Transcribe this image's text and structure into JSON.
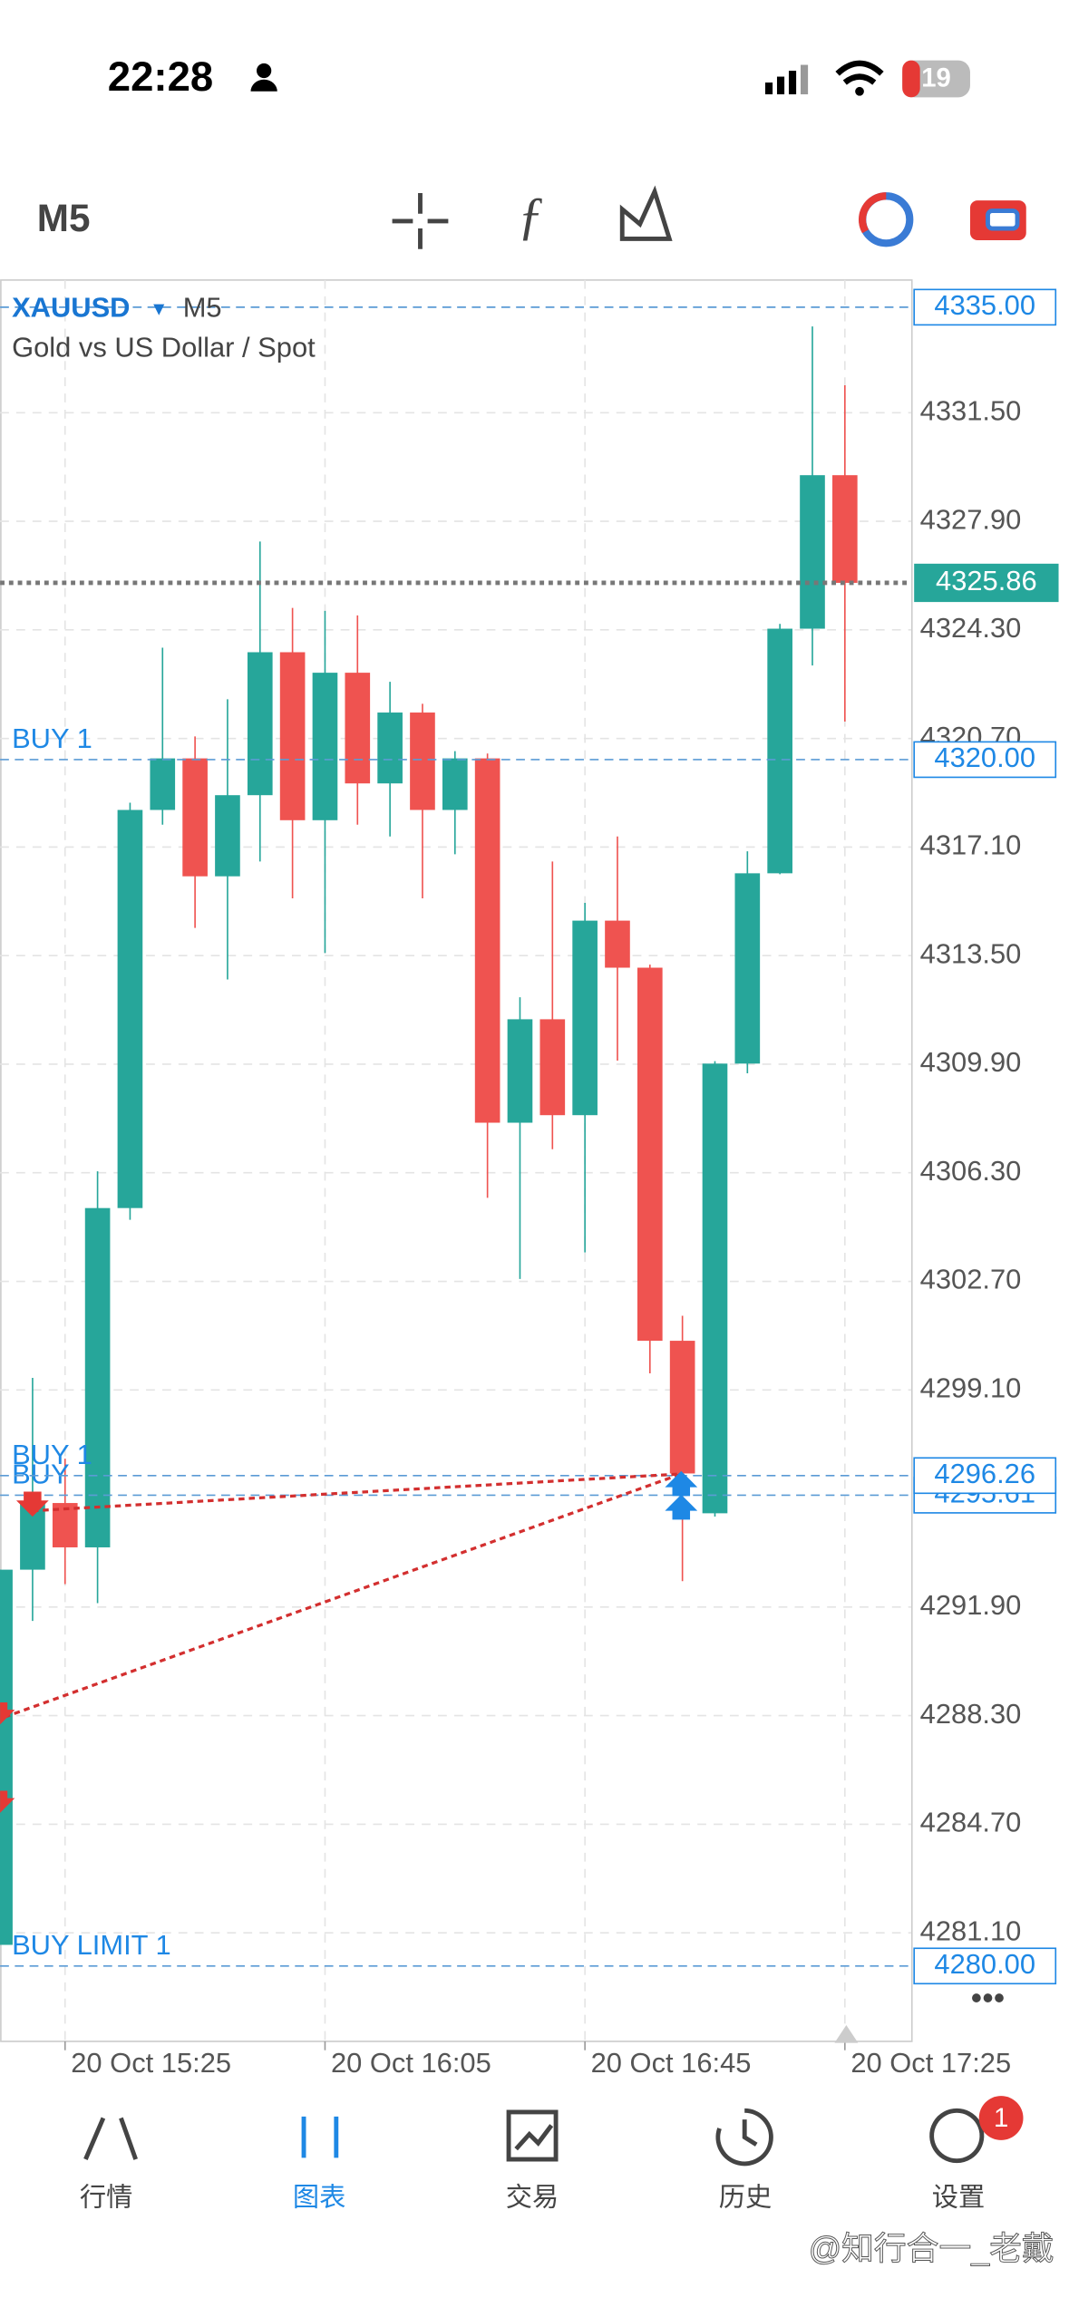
{
  "status_bar": {
    "time": "22:28",
    "battery": "19"
  },
  "toolbar": {
    "timeframe": "M5"
  },
  "chart_header": {
    "symbol": "XAUUSD",
    "timeframe": "M5",
    "description": "Gold vs US Dollar / Spot"
  },
  "chart_data": {
    "type": "candlestick",
    "categories": [
      null,
      null,
      "20 Oct 15:25",
      null,
      null,
      null,
      null,
      null,
      null,
      null,
      "20 Oct 16:05",
      null,
      null,
      null,
      null,
      null,
      null,
      null,
      "20 Oct 16:45",
      null,
      null,
      null,
      null,
      null,
      null,
      null,
      "20 Oct 17:25"
    ],
    "open": [
      4280.7,
      4293.14,
      4295.35,
      4293.88,
      4305.13,
      4318.33,
      4320.04,
      4316.13,
      4318.82,
      4323.56,
      4317.99,
      4322.88,
      4319.21,
      4321.56,
      4318.33,
      4320.04,
      4307.96,
      4311.39,
      4308.21,
      4314.66,
      4313.1,
      4300.73,
      4295.01,
      4309.92,
      4316.23,
      4324.34,
      4329.43
    ],
    "high": [
      4293.14,
      4299.5,
      4296.82,
      4306.35,
      4318.57,
      4323.71,
      4320.77,
      4322.0,
      4327.23,
      4325.03,
      4324.93,
      4324.78,
      4322.58,
      4321.85,
      4320.28,
      4320.2,
      4312.12,
      4316.62,
      4315.25,
      4317.45,
      4313.2,
      4301.56,
      4310.0,
      4316.96,
      4324.5,
      4334.36,
      4332.41
    ],
    "low": [
      4280.7,
      4291.44,
      4292.66,
      4292.03,
      4304.74,
      4317.84,
      4314.42,
      4312.71,
      4316.62,
      4315.4,
      4313.59,
      4317.84,
      4317.45,
      4315.4,
      4316.86,
      4305.47,
      4302.78,
      4307.08,
      4303.66,
      4310.02,
      4299.65,
      4292.76,
      4294.9,
      4309.6,
      4316.2,
      4323.12,
      4321.26
    ],
    "close": [
      4293.14,
      4295.35,
      4293.88,
      4305.13,
      4318.33,
      4320.04,
      4316.13,
      4318.82,
      4323.56,
      4317.99,
      4322.88,
      4319.21,
      4321.56,
      4318.33,
      4320.04,
      4307.96,
      4311.39,
      4308.21,
      4314.66,
      4313.1,
      4300.73,
      4296.33,
      4309.92,
      4316.23,
      4324.34,
      4329.43,
      4325.86
    ],
    "up_color": "#26a69a",
    "down_color": "#ef5350",
    "ylim": [
      4277.5,
      4335.9
    ],
    "yticks": [
      {
        "value": 4331.5,
        "label": "4331.50"
      },
      {
        "value": 4327.9,
        "label": "4327.90"
      },
      {
        "value": 4324.3,
        "label": "4324.30"
      },
      {
        "value": 4320.7,
        "label": "4320.70"
      },
      {
        "value": 4317.1,
        "label": "4317.10"
      },
      {
        "value": 4313.5,
        "label": "4313.50"
      },
      {
        "value": 4309.9,
        "label": "4309.90"
      },
      {
        "value": 4306.3,
        "label": "4306.30"
      },
      {
        "value": 4302.7,
        "label": "4302.70"
      },
      {
        "value": 4299.1,
        "label": "4299.10"
      },
      {
        "value": 4291.9,
        "label": "4291.90"
      },
      {
        "value": 4288.3,
        "label": "4288.30"
      },
      {
        "value": 4284.7,
        "label": "4284.70"
      },
      {
        "value": 4281.1,
        "label": "4281.10"
      }
    ],
    "grid": true,
    "levels": [
      {
        "value": 4335,
        "label": "4335.00"
      },
      {
        "name": "BUY 1",
        "value": 4320,
        "label": "4320.00"
      },
      {
        "name": "BUY",
        "value": 4295.61,
        "label": "4295.61"
      },
      {
        "name": "BUY 1",
        "value": 4296.26,
        "label": "4296.26"
      },
      {
        "name": "BUY LIMIT 1",
        "value": 4280,
        "label": "4280.00"
      }
    ],
    "last_price": {
      "value": 4325.86,
      "label": "4325.86"
    }
  },
  "tab_bar": {
    "tabs": [
      "行情",
      "图表",
      "交易",
      "历史",
      "设置"
    ],
    "active": 1,
    "badge": "1"
  },
  "watermark": "@知行合一_老戴"
}
